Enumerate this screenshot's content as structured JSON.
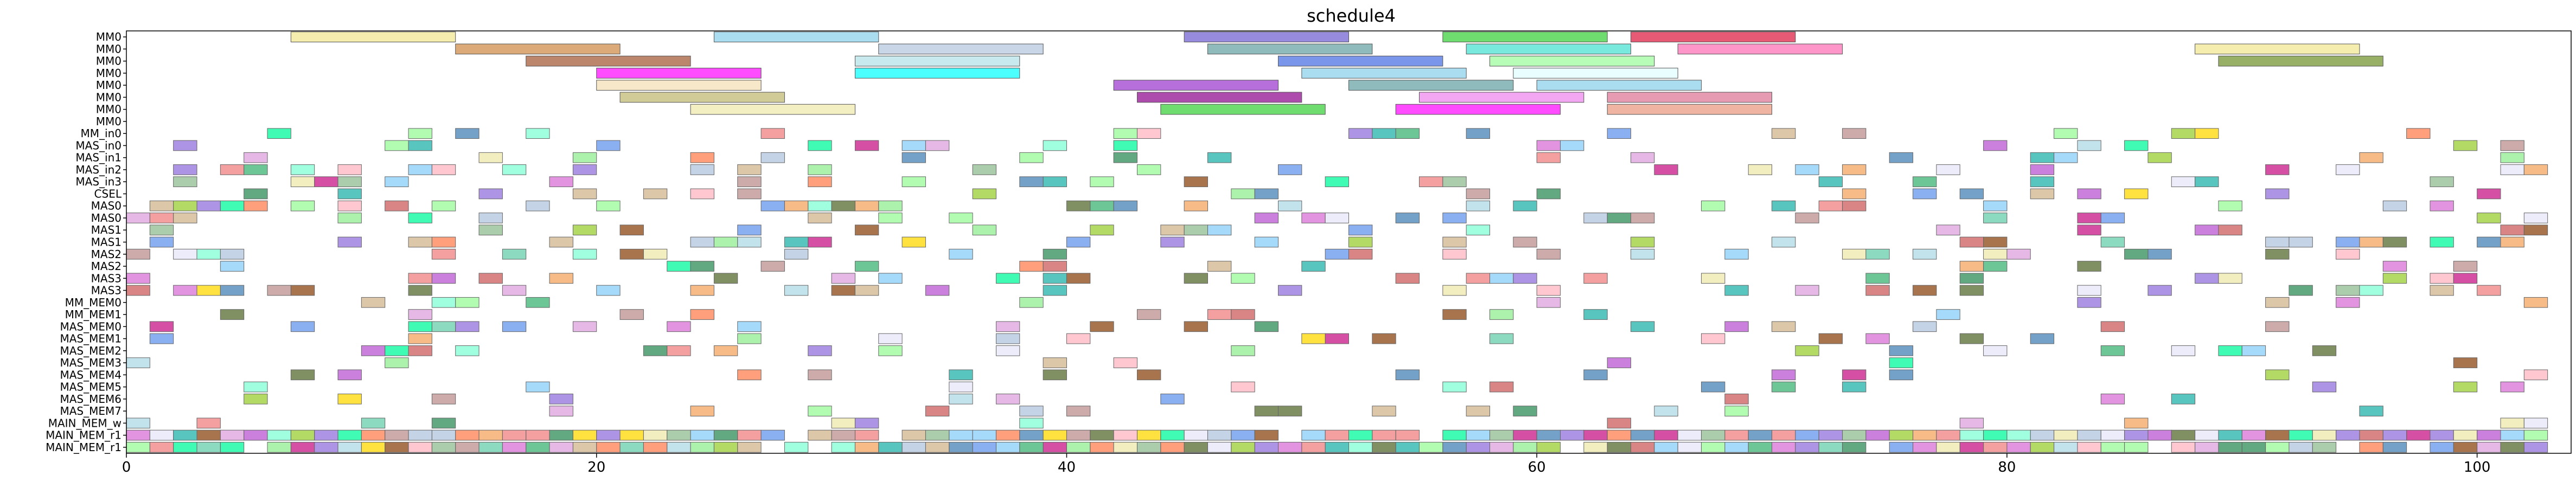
{
  "chart_data": {
    "type": "gantt",
    "title": "schedule4",
    "xlabel": "",
    "ylabel": "",
    "xlim": [
      0,
      104
    ],
    "x_ticks": [
      0,
      20,
      40,
      60,
      80,
      100
    ],
    "grid": false,
    "rows": [
      "MM0",
      "MM0",
      "MM0",
      "MM0",
      "MM0",
      "MM0",
      "MM0",
      "MM0",
      "MM_in0",
      "MAS_in0",
      "MAS_in1",
      "MAS_in2",
      "MAS_in3",
      "CSEL",
      "MAS0",
      "MAS0",
      "MAS1",
      "MAS1",
      "MAS2",
      "MAS2",
      "MAS3",
      "MAS3",
      "MM_MEM0",
      "MM_MEM1",
      "MAS_MEM0",
      "MAS_MEM1",
      "MAS_MEM2",
      "MAS_MEM3",
      "MAS_MEM4",
      "MAS_MEM5",
      "MAS_MEM6",
      "MAS_MEM7",
      "MAIN_MEM_w",
      "MAIN_MEM_r1",
      "MAIN_MEM_r1"
    ],
    "tasks": [
      {
        "row": 0,
        "start": 7,
        "end": 14,
        "color": "#f0e68c"
      },
      {
        "row": 0,
        "start": 25,
        "end": 32,
        "color": "#87ceeb"
      },
      {
        "row": 0,
        "start": 45,
        "end": 52,
        "color": "#6a5acd"
      },
      {
        "row": 0,
        "start": 56,
        "end": 63,
        "color": "#32cd32"
      },
      {
        "row": 0,
        "start": 64,
        "end": 71,
        "color": "#dc143c"
      },
      {
        "row": 1,
        "start": 14,
        "end": 21,
        "color": "#cd853f"
      },
      {
        "row": 1,
        "start": 32,
        "end": 39,
        "color": "#b0c4de"
      },
      {
        "row": 1,
        "start": 46,
        "end": 53,
        "color": "#5f9ea0"
      },
      {
        "row": 1,
        "start": 57,
        "end": 64,
        "color": "#40e0d0"
      },
      {
        "row": 1,
        "start": 66,
        "end": 73,
        "color": "#ff69b4"
      },
      {
        "row": 1,
        "start": 88,
        "end": 95,
        "color": "#f0e68c"
      },
      {
        "row": 2,
        "start": 17,
        "end": 24,
        "color": "#a0522d"
      },
      {
        "row": 2,
        "start": 31,
        "end": 38,
        "color": "#b0e0e6"
      },
      {
        "row": 2,
        "start": 49,
        "end": 56,
        "color": "#4169e1"
      },
      {
        "row": 2,
        "start": 58,
        "end": 65,
        "color": "#98fb98"
      },
      {
        "row": 2,
        "start": 89,
        "end": 96,
        "color": "#6b8e23"
      },
      {
        "row": 3,
        "start": 20,
        "end": 27,
        "color": "#ff00ff"
      },
      {
        "row": 3,
        "start": 31,
        "end": 38,
        "color": "#00ffff"
      },
      {
        "row": 3,
        "start": 50,
        "end": 57,
        "color": "#87ceeb"
      },
      {
        "row": 3,
        "start": 59,
        "end": 66,
        "color": "#e0ffff"
      },
      {
        "row": 4,
        "start": 20,
        "end": 27,
        "color": "#f5deb3"
      },
      {
        "row": 4,
        "start": 42,
        "end": 49,
        "color": "#9932cc"
      },
      {
        "row": 4,
        "start": 52,
        "end": 59,
        "color": "#5f9ea0"
      },
      {
        "row": 4,
        "start": 60,
        "end": 67,
        "color": "#87ceeb"
      },
      {
        "row": 5,
        "start": 21,
        "end": 28,
        "color": "#bdb76b"
      },
      {
        "row": 5,
        "start": 43,
        "end": 50,
        "color": "#8b008b"
      },
      {
        "row": 5,
        "start": 55,
        "end": 62,
        "color": "#ee82ee"
      },
      {
        "row": 5,
        "start": 63,
        "end": 70,
        "color": "#db7093"
      },
      {
        "row": 6,
        "start": 24,
        "end": 31,
        "color": "#eee8aa"
      },
      {
        "row": 6,
        "start": 44,
        "end": 51,
        "color": "#32cd32"
      },
      {
        "row": 6,
        "start": 54,
        "end": 61,
        "color": "#ff00ff"
      },
      {
        "row": 6,
        "start": 63,
        "end": 70,
        "color": "#e9967a"
      }
    ],
    "cell_colors": [
      "#f4a460",
      "#b0c4de",
      "#90ee90",
      "#dda0dd",
      "#87cefa",
      "#f08080",
      "#66cdaa",
      "#ffd700",
      "#9370db",
      "#3cb371",
      "#ff7f50",
      "#8fbc8f",
      "#ba55d3",
      "#add8e6",
      "#cd5c5c",
      "#7fffd4",
      "#d2b48c",
      "#6495ed",
      "#98fb98",
      "#c71585",
      "#bc8f8f",
      "#20b2aa",
      "#ffb6c1",
      "#556b2f",
      "#da70d6",
      "#4682b4",
      "#eee8aa",
      "#8b4513",
      "#00fa9a",
      "#9acd32",
      "#e6e6fa",
      "#2e8b57"
    ]
  }
}
